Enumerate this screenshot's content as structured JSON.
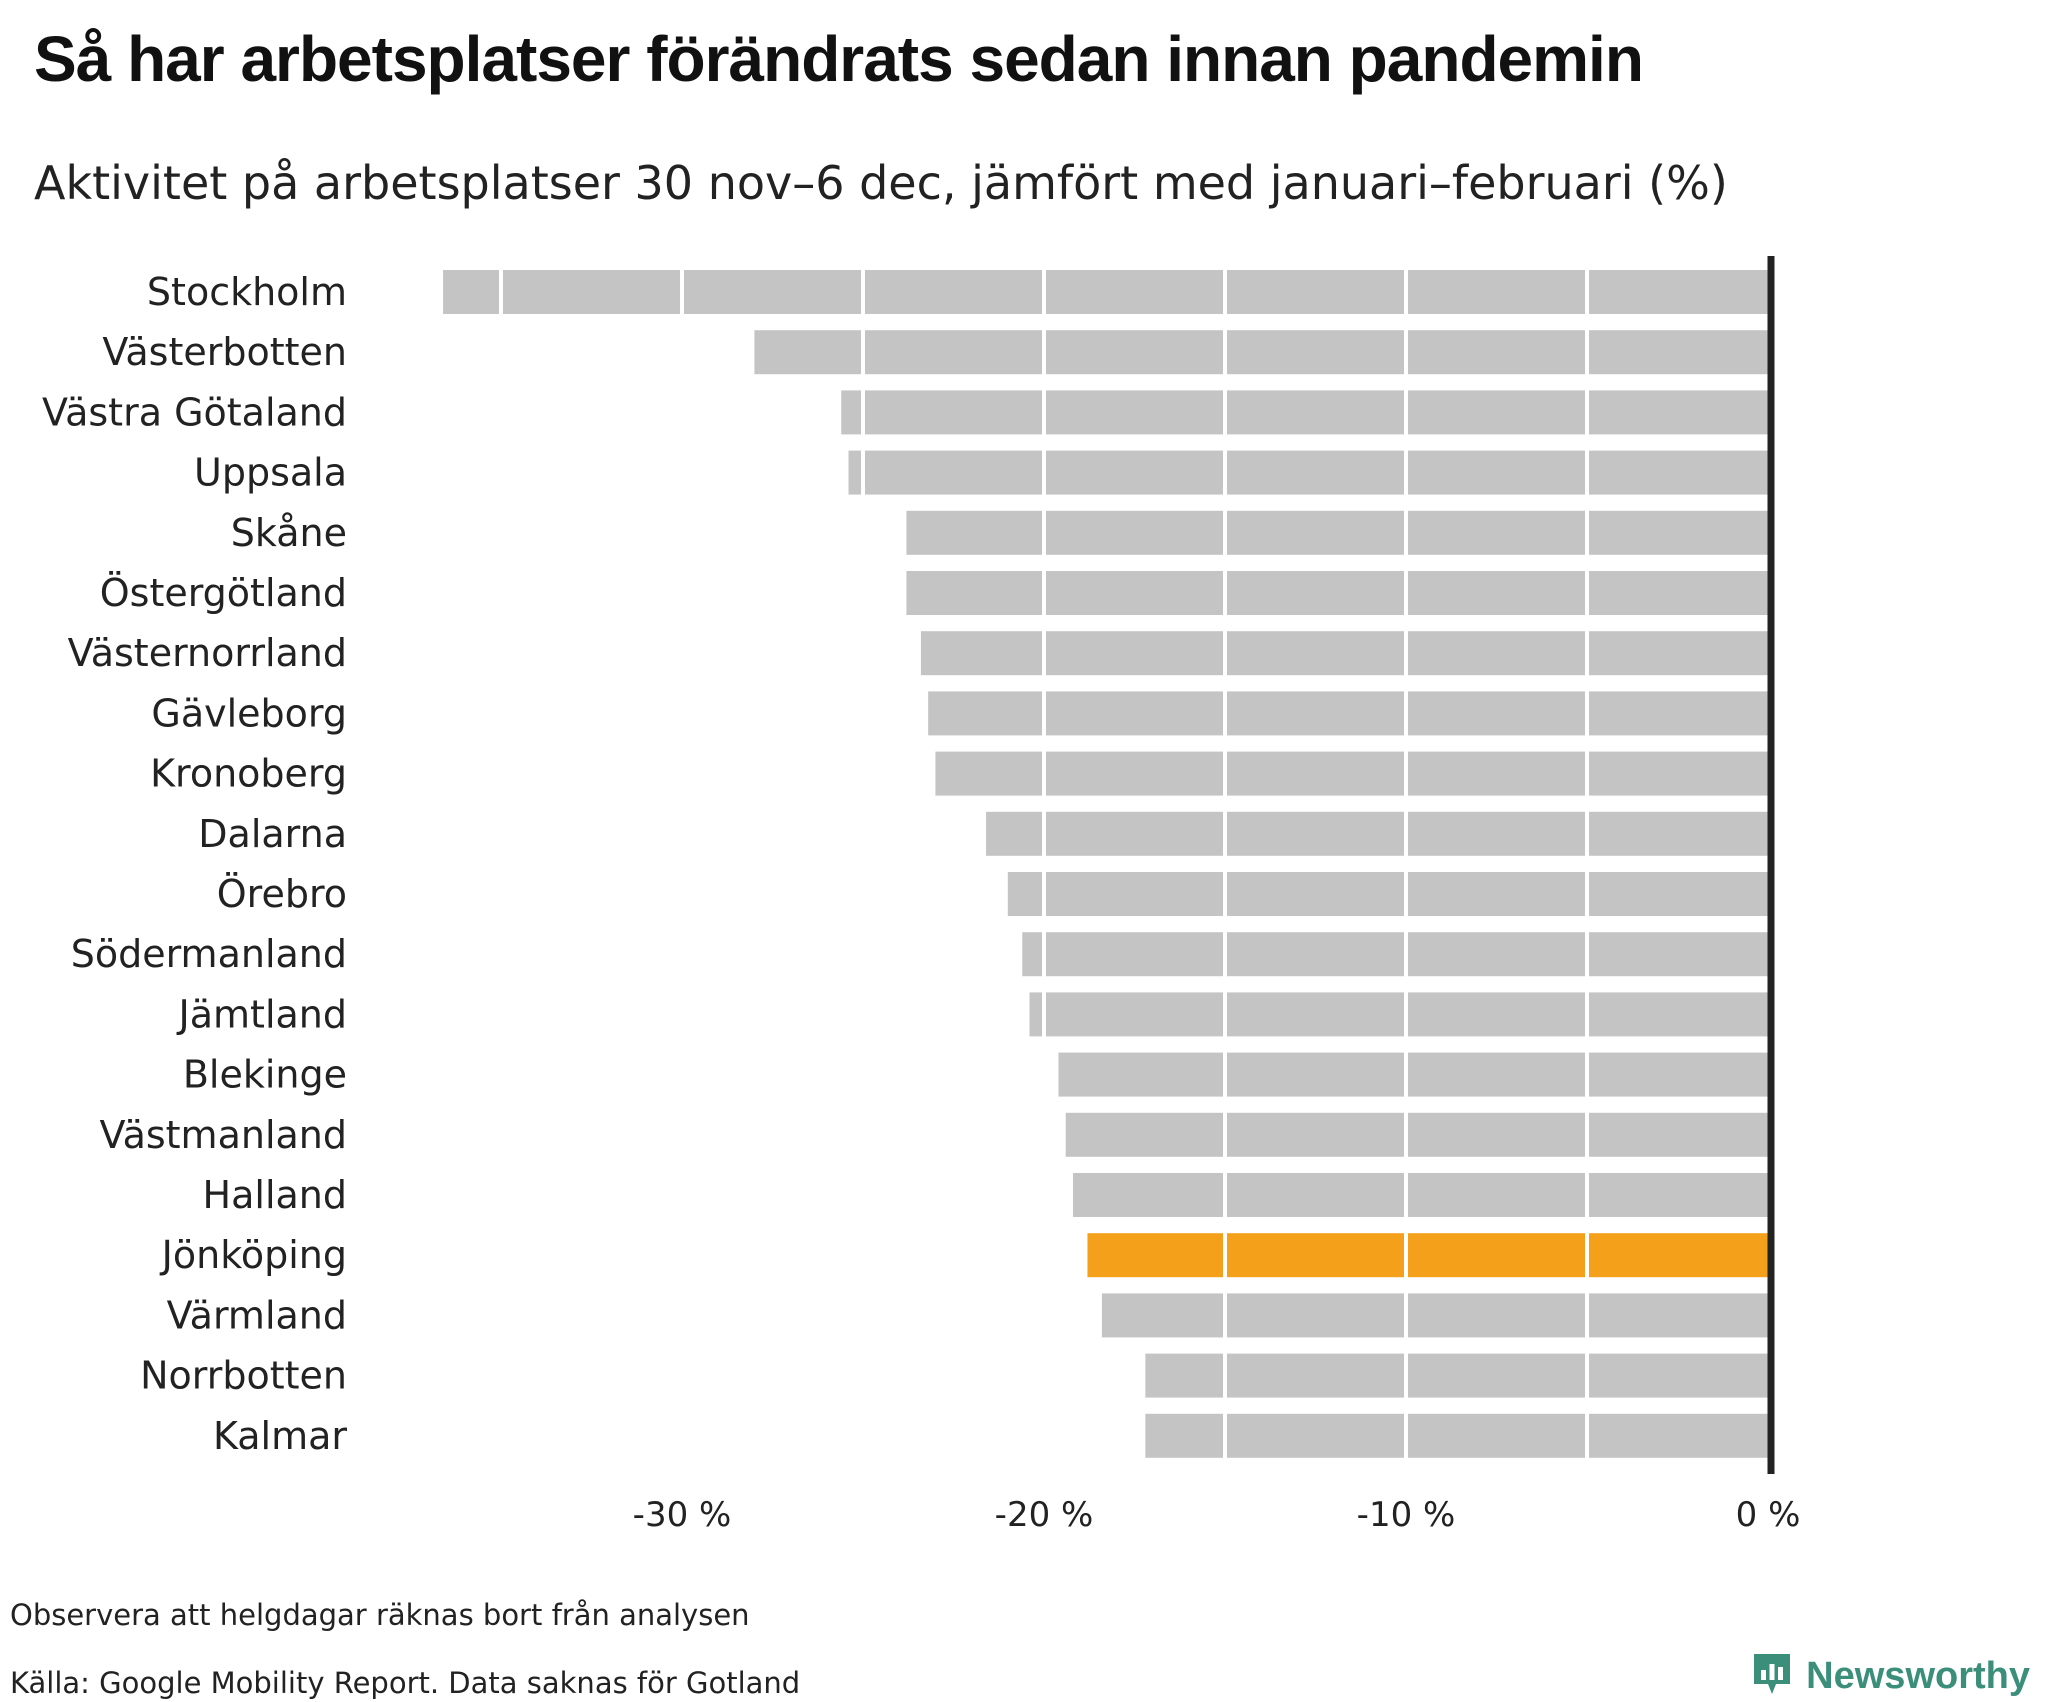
{
  "title": "Så har arbetsplatser förändrats sedan innan pandemin",
  "subtitle": "Aktivitet på arbetsplatser 30 nov–6 dec, jämfört med januari–februari (%)",
  "footnote": "Observera att helgdagar räknas bort från analysen",
  "source": "Källa: Google Mobility Report. Data saknas för Gotland",
  "brand": {
    "name": "Newsworthy",
    "icon": "newsworthy-logo-icon",
    "color": "#3b8f7a"
  },
  "chart_data": {
    "type": "bar",
    "orientation": "horizontal",
    "categories": [
      "Stockholm",
      "Västerbotten",
      "Västra Götaland",
      "Uppsala",
      "Skåne",
      "Östergötland",
      "Västernorrland",
      "Gävleborg",
      "Kronoberg",
      "Dalarna",
      "Örebro",
      "Södermanland",
      "Jämtland",
      "Blekinge",
      "Västmanland",
      "Halland",
      "Jönköping",
      "Värmland",
      "Norrbotten",
      "Kalmar"
    ],
    "values": [
      -36.6,
      -28.0,
      -25.6,
      -25.4,
      -23.8,
      -23.8,
      -23.4,
      -23.2,
      -23.0,
      -21.6,
      -21.0,
      -20.6,
      -20.4,
      -19.6,
      -19.4,
      -19.2,
      -18.8,
      -18.4,
      -17.2,
      -17.2
    ],
    "highlight": "Jönköping",
    "xlim": [
      -37,
      0
    ],
    "xticks": [
      -30,
      -20,
      -10,
      0
    ],
    "xtick_labels": [
      "-30 %",
      "-20 %",
      "-10 %",
      "0 %"
    ],
    "grid": true,
    "colors": {
      "bar": "#c4c4c4",
      "highlight": "#f5a01a",
      "zero_line": "#222222",
      "grid": "#ffffff"
    }
  }
}
